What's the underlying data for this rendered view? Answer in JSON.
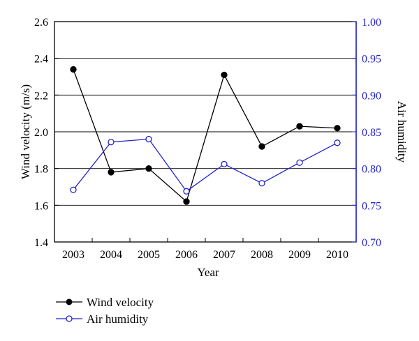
{
  "chart_data": {
    "type": "line",
    "x": [
      "2003",
      "2004",
      "2005",
      "2006",
      "2007",
      "2008",
      "2009",
      "2010"
    ],
    "xlabel": "Year",
    "ylabel_left": "Wind velocity (m/s)",
    "ylabel_right": "Air humidity",
    "ylim_left": [
      1.4,
      2.6
    ],
    "ylim_right": [
      0.7,
      1.0
    ],
    "yticks_left": [
      "1.4",
      "1.6",
      "1.8",
      "2.0",
      "2.2",
      "2.4",
      "2.6"
    ],
    "yticks_right": [
      "0.70",
      "0.75",
      "0.80",
      "0.85",
      "0.90",
      "0.95",
      "1.00"
    ],
    "grid": "horizontal",
    "legend_position": "bottom-left",
    "series": [
      {
        "name": "Wind velocity",
        "axis": "left",
        "marker": "filled-circle",
        "color": "#000000",
        "values": [
          2.34,
          1.78,
          1.8,
          1.62,
          2.31,
          1.92,
          2.03,
          2.02
        ]
      },
      {
        "name": "Air humidity",
        "axis": "right",
        "marker": "open-circle",
        "color": "#2222cc",
        "values": [
          0.771,
          0.836,
          0.84,
          0.769,
          0.806,
          0.78,
          0.808,
          0.835
        ]
      }
    ]
  }
}
